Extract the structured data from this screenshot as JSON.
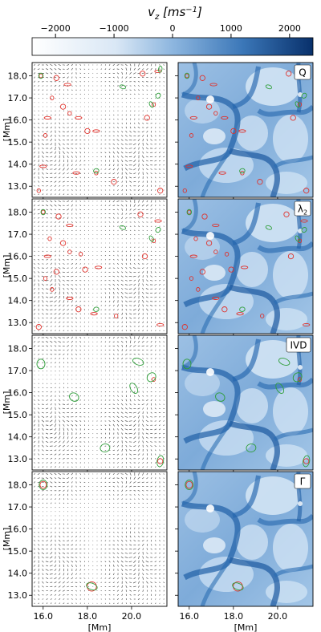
{
  "figure": {
    "colorbar": {
      "label_main": "v",
      "label_sub": "z",
      "label_unit": " [ms",
      "label_exp": "−1",
      "label_close": "]",
      "ticks": [
        {
          "value": -2000,
          "label": "−2000"
        },
        {
          "value": -1000,
          "label": "−1000"
        },
        {
          "value": 0,
          "label": "0"
        },
        {
          "value": 1000,
          "label": "1000"
        },
        {
          "value": 2000,
          "label": "2000"
        }
      ],
      "range": [
        -2400,
        2400
      ],
      "cmap_colors": [
        "#ffffff",
        "#a9c8e8",
        "#3f7fbf",
        "#0a3d86"
      ]
    },
    "axes": {
      "x_range": [
        15.5,
        21.6
      ],
      "y_range": [
        12.5,
        18.6
      ],
      "x_ticks": [
        {
          "value": 16.0,
          "label": "16.0"
        },
        {
          "value": 18.0,
          "label": "18.0"
        },
        {
          "value": 20.0,
          "label": "20.0"
        }
      ],
      "y_ticks": [
        {
          "value": 18.0,
          "label": "18.0"
        },
        {
          "value": 17.0,
          "label": "17.0"
        },
        {
          "value": 16.0,
          "label": "16.0"
        },
        {
          "value": 15.0,
          "label": "15.0"
        },
        {
          "value": 14.0,
          "label": "14.0"
        },
        {
          "value": 13.0,
          "label": "13.0"
        }
      ],
      "x_label": "[Mm]",
      "y_label": "[Mm]"
    },
    "rows": [
      {
        "label": "Q",
        "label_sub": "",
        "red": [
          [
            15.9,
            18.0
          ],
          [
            16.6,
            17.9
          ],
          [
            17.1,
            17.6
          ],
          [
            16.4,
            17.0
          ],
          [
            16.9,
            16.6
          ],
          [
            16.2,
            16.1
          ],
          [
            17.2,
            16.3
          ],
          [
            18.0,
            15.5
          ],
          [
            18.4,
            15.5
          ],
          [
            16.1,
            15.3
          ],
          [
            20.5,
            18.1
          ],
          [
            21.2,
            18.2
          ],
          [
            21.0,
            16.7
          ],
          [
            20.7,
            16.1
          ],
          [
            17.5,
            13.6
          ],
          [
            18.4,
            13.6
          ],
          [
            19.2,
            13.2
          ],
          [
            16.0,
            13.9
          ],
          [
            15.8,
            12.8
          ],
          [
            21.3,
            12.8
          ],
          [
            17.6,
            16.1
          ]
        ],
        "green": [
          [
            15.9,
            18.0
          ],
          [
            19.6,
            17.5
          ],
          [
            21.2,
            17.1
          ],
          [
            20.9,
            16.7
          ],
          [
            18.4,
            13.7
          ],
          [
            21.3,
            18.3
          ]
        ]
      },
      {
        "label": "λ",
        "label_sub": "2",
        "red": [
          [
            16.0,
            18.0
          ],
          [
            16.7,
            17.8
          ],
          [
            17.2,
            17.4
          ],
          [
            16.3,
            16.8
          ],
          [
            16.9,
            16.6
          ],
          [
            16.2,
            16.0
          ],
          [
            17.2,
            16.2
          ],
          [
            17.9,
            15.4
          ],
          [
            18.5,
            15.5
          ],
          [
            16.1,
            15.0
          ],
          [
            20.4,
            17.9
          ],
          [
            21.2,
            17.6
          ],
          [
            21.0,
            16.7
          ],
          [
            20.6,
            16.0
          ],
          [
            17.2,
            14.1
          ],
          [
            16.4,
            14.5
          ],
          [
            17.6,
            13.6
          ],
          [
            18.3,
            13.4
          ],
          [
            19.3,
            13.3
          ],
          [
            15.8,
            12.8
          ],
          [
            21.3,
            12.9
          ],
          [
            17.7,
            16.1
          ],
          [
            16.6,
            15.3
          ]
        ],
        "green": [
          [
            16.0,
            18.0
          ],
          [
            19.6,
            17.3
          ],
          [
            21.2,
            17.2
          ],
          [
            20.9,
            16.8
          ],
          [
            18.4,
            13.6
          ]
        ]
      },
      {
        "label": "IVD",
        "label_sub": "",
        "red": [
          [
            21.0,
            16.6
          ],
          [
            21.3,
            12.9
          ]
        ],
        "green": [
          [
            15.9,
            17.3
          ],
          [
            20.3,
            17.4
          ],
          [
            20.9,
            16.7
          ],
          [
            20.1,
            16.2
          ],
          [
            18.8,
            13.5
          ],
          [
            21.3,
            12.9
          ],
          [
            17.4,
            15.8
          ]
        ]
      },
      {
        "label": "Γ",
        "label_sub": "",
        "red": [
          [
            16.0,
            18.0
          ],
          [
            18.2,
            13.4
          ]
        ],
        "green": [
          [
            16.0,
            18.0
          ],
          [
            18.2,
            13.4
          ]
        ]
      }
    ]
  }
}
